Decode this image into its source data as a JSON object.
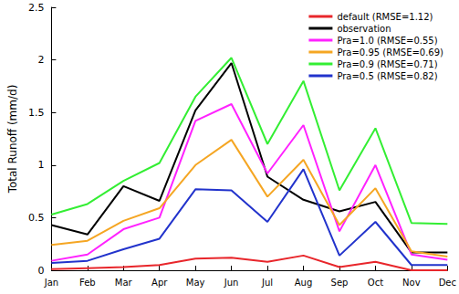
{
  "chart_data": {
    "type": "line",
    "y_label": "Total Runoff (mm/d)",
    "categories": [
      "Jan",
      "Feb",
      "Mar",
      "Apr",
      "May",
      "Jun",
      "Jul",
      "Aug",
      "Sep",
      "Oct",
      "Nov",
      "Dec"
    ],
    "series": [
      {
        "name": "default (RMSE=1.12)",
        "color": "#e8262b",
        "values": [
          0.01,
          0.02,
          0.03,
          0.05,
          0.11,
          0.12,
          0.08,
          0.14,
          0.03,
          0.08,
          0.0,
          0.0
        ]
      },
      {
        "name": "observation",
        "color": "#000000",
        "values": [
          0.43,
          0.34,
          0.8,
          0.66,
          1.52,
          1.97,
          0.89,
          0.67,
          0.56,
          0.65,
          0.17,
          0.17
        ]
      },
      {
        "name": "Pra=1.0 (RMSE=0.55)",
        "color": "#ff22ff",
        "values": [
          0.09,
          0.15,
          0.39,
          0.5,
          1.42,
          1.58,
          0.92,
          1.38,
          0.37,
          1.0,
          0.15,
          0.1
        ]
      },
      {
        "name": "Pra=0.95 (RMSE=0.69)",
        "color": "#f5a623",
        "values": [
          0.24,
          0.28,
          0.47,
          0.59,
          1.0,
          1.24,
          0.7,
          1.05,
          0.43,
          0.78,
          0.18,
          0.13
        ]
      },
      {
        "name": "Pra=0.9 (RMSE=0.71)",
        "color": "#33ee33",
        "values": [
          0.53,
          0.63,
          0.85,
          1.02,
          1.65,
          2.02,
          1.2,
          1.8,
          0.76,
          1.35,
          0.45,
          0.44
        ]
      },
      {
        "name": "Pra=0.5 (RMSE=0.82)",
        "color": "#2233cc",
        "values": [
          0.07,
          0.09,
          0.2,
          0.3,
          0.77,
          0.76,
          0.46,
          0.96,
          0.14,
          0.46,
          0.05,
          0.05
        ]
      }
    ],
    "ylim": [
      0,
      2.5
    ],
    "yticks": [
      0,
      0.5,
      1,
      1.5,
      2,
      2.5
    ],
    "grid": false,
    "legend": "upper right",
    "marker": "none"
  }
}
